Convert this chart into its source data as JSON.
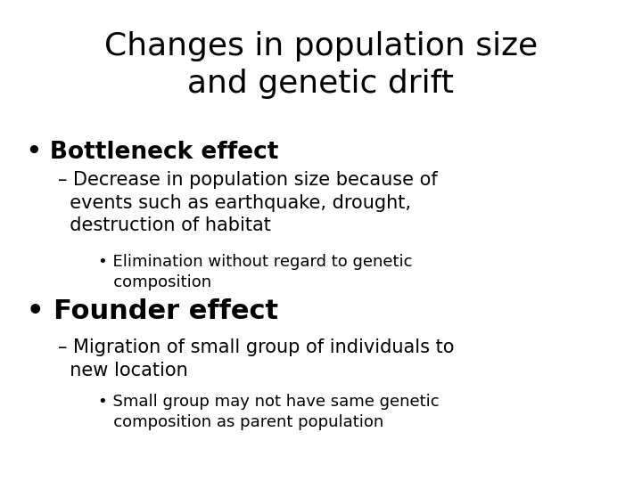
{
  "title_line1": "Changes in population size",
  "title_line2": "and genetic drift",
  "background_color": "#ffffff",
  "text_color": "#000000",
  "title_fontsize": 26,
  "bullet1_text": "• Bottleneck effect",
  "bullet1_fontsize": 19,
  "sub1_text": "– Decrease in population size because of\n  events such as earthquake, drought,\n  destruction of habitat",
  "sub1_fontsize": 15,
  "subsub1_text": "• Elimination without regard to genetic\n   composition",
  "subsub1_fontsize": 13,
  "bullet2_text": "• Founder effect",
  "bullet2_fontsize": 22,
  "sub2_text": "– Migration of small group of individuals to\n  new location",
  "sub2_fontsize": 15,
  "subsub2_text": "• Small group may not have same genetic\n   composition as parent population",
  "subsub2_fontsize": 13,
  "fig_width": 7.2,
  "fig_height": 5.4,
  "dpi": 100
}
